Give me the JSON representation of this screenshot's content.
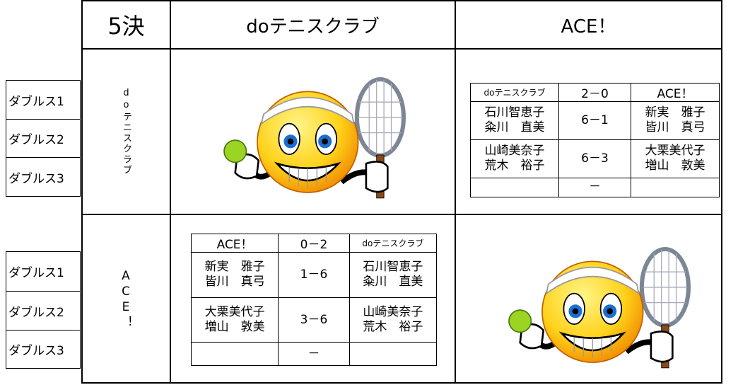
{
  "header": {
    "title": "5決",
    "team1": "doテニスクラブ",
    "team2": "ACE！"
  },
  "matches": [
    {
      "team": "doテニスクラブ",
      "labels": [
        "ダブルス1",
        "ダブルス2",
        "ダブルス3"
      ],
      "table": {
        "header": [
          "doテニスクラブ",
          "2－0",
          "ACE！"
        ],
        "rows": [
          {
            "left": [
              "石川智恵子",
              "粂川　直美"
            ],
            "score": "6－1",
            "right": [
              "新実　雅子",
              "皆川　真弓"
            ]
          },
          {
            "left": [
              "山崎美奈子",
              "荒木　裕子"
            ],
            "score": "6－3",
            "right": [
              "大栗美代子",
              "増山　敦美"
            ]
          },
          {
            "score": "－"
          }
        ]
      }
    },
    {
      "team": "ACE！",
      "labels": [
        "ダブルス1",
        "ダブルス2",
        "ダブルス3"
      ],
      "table": {
        "header": [
          "ACE！",
          "0－2",
          "doテニスクラブ"
        ],
        "rows": [
          {
            "left": [
              "新実　雅子",
              "皆川　真弓"
            ],
            "score": "1－6",
            "right": [
              "石川智恵子",
              "粂川　直美"
            ]
          },
          {
            "left": [
              "大栗美代子",
              "増山　敦美"
            ],
            "score": "3－6",
            "right": [
              "山崎美奈子",
              "荒木　裕子"
            ]
          },
          {
            "score": "－"
          }
        ]
      }
    }
  ]
}
